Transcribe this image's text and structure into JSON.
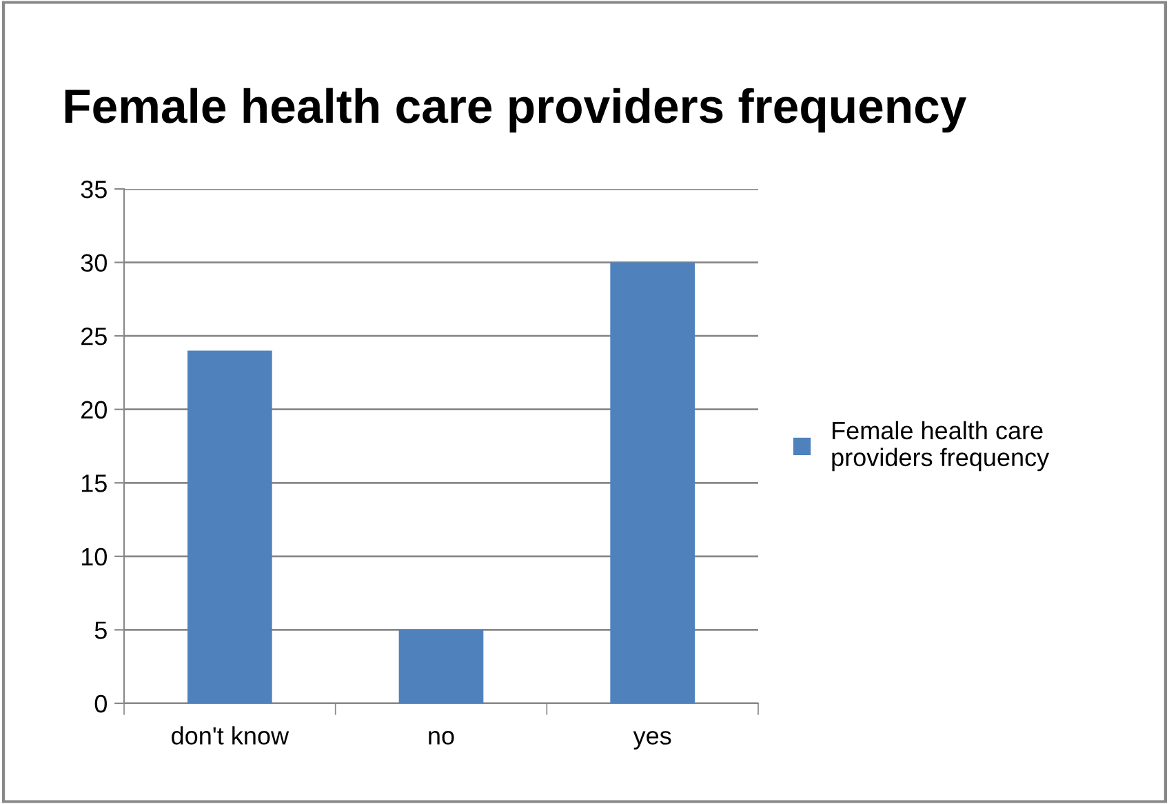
{
  "chart_data": {
    "type": "bar",
    "title": "Female health care providers frequency",
    "categories": [
      "don't know",
      "no",
      "yes"
    ],
    "series": [
      {
        "name": "Female health care providers frequency",
        "color": "#4f81bd",
        "values": [
          24,
          5,
          30
        ]
      }
    ],
    "ylim": [
      0,
      35
    ],
    "yticks": [
      0,
      5,
      10,
      15,
      20,
      25,
      30,
      35
    ],
    "grid": "y",
    "legend": "right"
  }
}
